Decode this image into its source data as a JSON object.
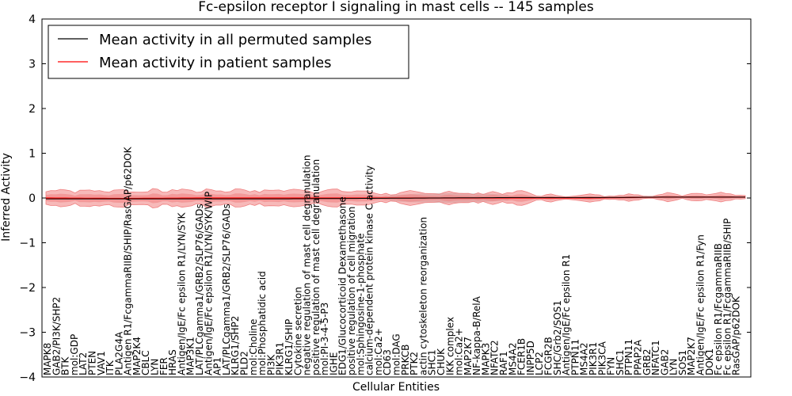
{
  "chart_data": {
    "type": "line",
    "title": "Fc-epsilon receptor I signaling in mast cells -- 145 samples",
    "xlabel": "Cellular Entities",
    "ylabel": "Inferred Activity",
    "ylim": [
      -4,
      4
    ],
    "yticks": [
      -4,
      -3,
      -2,
      -1,
      0,
      1,
      2,
      3,
      4
    ],
    "n_points": 145,
    "legend": {
      "location": "top-left",
      "entries": [
        {
          "label": "Mean activity in all permuted samples",
          "color": "#000000"
        },
        {
          "label": "Mean activity in patient samples",
          "color": "#ff0000"
        }
      ]
    },
    "colors": {
      "permuted_line": "#000000",
      "patient_line": "#ff0000",
      "patient_band": "#f08080",
      "permuted_band": "#aaaaaa"
    },
    "series": [
      {
        "name": "Mean activity in all permuted samples",
        "values": [
          -0.02,
          -0.02,
          -0.02,
          -0.02,
          -0.01,
          0.0,
          0.01,
          0.01,
          0.02,
          0.02
        ]
      },
      {
        "name": "Mean activity in patient samples",
        "values": [
          0.0,
          -0.01,
          0.0,
          0.0,
          0.0,
          0.0,
          0.0,
          0.0,
          0.02,
          0.02
        ]
      }
    ],
    "entity_labels": [
      "MAPK8",
      "GAB2/PI3K/SHP2",
      "BTK",
      "mol:GDP",
      "LAT2",
      "PTEN",
      "VAV1",
      "ITK",
      "PLA2G4A",
      "Antigen R1/FcgammaRIIB/SHIP/RasGAP/p62DOK",
      "MAP2K4",
      "CBLC",
      "LYN",
      "FER",
      "HRAS",
      "Antigen/IgE/Fc epsilon R1/LYN/SYK",
      "MAP3K1",
      "LAT/PLCgamma1/GRB2/SLP76/GADs",
      "Antigen/IgE/Fc epsilon R1/LYN/SYK/WIP",
      "AP1",
      "LAT/PLCgamma1/GRB2/SLP76/GADs",
      "KLRG1/SHP2",
      "PLD2",
      "mol:Choline",
      "mol:Phosphatidic acid",
      "PI3K",
      "PIK3R1",
      "KLRG1/SHIP",
      "Cytokine secretion",
      "negative regulation of mast cell degranulation",
      "positive regulation of mast cell degranulation",
      "mol:PI-3-4-5-P3",
      "IGHE",
      "EDG1/Glucocorticoid Dexamethasone",
      "positive regulation of cell migration",
      "mol:Sphingosine-1-phosphate",
      "calcium-dependent protein kinase C activity",
      "mol:Ca2+",
      "CD63",
      "mol:DAG",
      "PRKCB",
      "PTK2",
      "actin cytoskeleton reorganization",
      "SHC1",
      "CHUK",
      "IKK complex",
      "mol:Ca2+",
      "MAP2K7",
      "NF-kappa-B/RelA",
      "MAPK3",
      "NFATC2",
      "RAF1",
      "MS4A2",
      "FCER1B",
      "INPP5D",
      "LCP2",
      "FCGR2B",
      "SHC/Grb2/SOS1",
      "Antigen/IgE/Fc epsilon R1",
      "PTPN11",
      "MS4A2",
      "PIK3R1",
      "PIK3CA",
      "FYN",
      "SHC1",
      "PTPN11",
      "PPAP2A",
      "GRB2",
      "NFATC1",
      "GAB2",
      "LYN",
      "SOS1",
      "MAP2K7",
      "Antigen/IgE/Fc epsilon R1/Fyn",
      "DOK1",
      "Fc epsilon R1/FcgammaRIIB",
      "Fc epsilon R1/FcgammaRIIB/SHIP",
      "RasGAP/p62DOK"
    ]
  }
}
